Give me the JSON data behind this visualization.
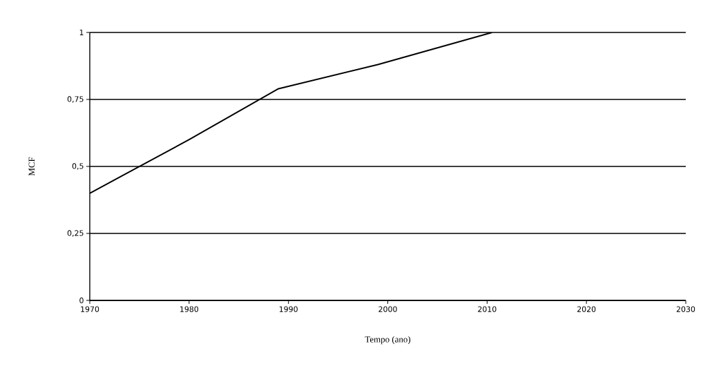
{
  "chart_data": {
    "type": "line",
    "xlabel": "Tempo (ano)",
    "ylabel": "MCF",
    "x": [
      1970,
      1975,
      1980,
      1989,
      1999,
      2010.5
    ],
    "values": [
      0.4,
      0.5,
      0.6,
      0.79,
      0.88,
      1.0
    ],
    "color": "#000000",
    "xlim": [
      1970,
      2030
    ],
    "xticks": [
      1970,
      1980,
      1990,
      2000,
      2010,
      2020,
      2030
    ],
    "ylim": [
      0,
      1
    ],
    "yticks": [
      0,
      {
        "value": 0.25,
        "label": "0,25"
      },
      {
        "value": 0.5,
        "label": "0,5"
      },
      {
        "value": 0.75,
        "label": "0,75"
      },
      1
    ],
    "grid": "y",
    "marker": "none",
    "line_style": "solid"
  }
}
